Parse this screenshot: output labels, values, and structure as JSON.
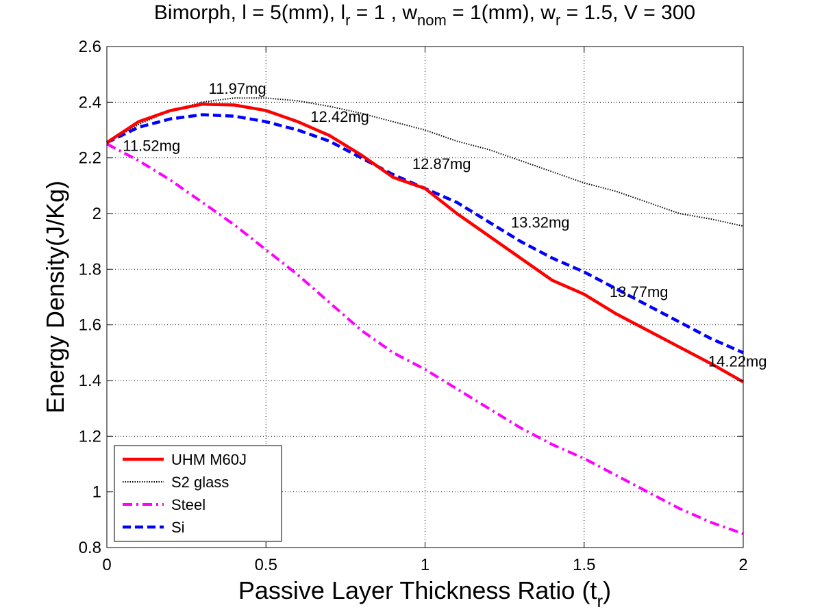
{
  "chart_data": {
    "type": "line",
    "title": {
      "parts": [
        {
          "text": "Bimorph, l = 5(mm), l",
          "sub": false
        },
        {
          "text": "r",
          "sub": true
        },
        {
          "text": " = 1 , w",
          "sub": false
        },
        {
          "text": "nom",
          "sub": true
        },
        {
          "text": " = 1(mm), w",
          "sub": false
        },
        {
          "text": "r",
          "sub": true
        },
        {
          "text": " = 1.5, V = 300",
          "sub": false
        }
      ]
    },
    "xlabel": {
      "main": "Passive Layer Thickness Ratio (t",
      "sub": "r",
      "close": ")"
    },
    "ylabel": "Energy Density(J/Kg)",
    "xlim": [
      0,
      2
    ],
    "ylim": [
      0.8,
      2.6
    ],
    "xticks": [
      0,
      0.5,
      1,
      1.5,
      2
    ],
    "xtick_labels": [
      "0",
      "0.5",
      "1",
      "1.5",
      "2"
    ],
    "yticks": [
      0.8,
      1,
      1.2,
      1.4,
      1.6,
      1.8,
      2,
      2.2,
      2.4,
      2.6
    ],
    "ytick_labels": [
      "0.8",
      "1",
      "1.2",
      "1.4",
      "1.6",
      "1.8",
      "2",
      "2.2",
      "2.4",
      "2.6"
    ],
    "grid": true,
    "legend_position": "bottom-left",
    "x": [
      0,
      0.1,
      0.2,
      0.3,
      0.4,
      0.5,
      0.6,
      0.7,
      0.8,
      0.9,
      1.0,
      1.1,
      1.2,
      1.3,
      1.4,
      1.5,
      1.6,
      1.7,
      1.8,
      1.9,
      2.0
    ],
    "series": [
      {
        "name": "UHM M60J",
        "color": "#ff0000",
        "style": "solid",
        "values": [
          2.255,
          2.33,
          2.37,
          2.393,
          2.39,
          2.37,
          2.33,
          2.28,
          2.21,
          2.13,
          2.09,
          2.0,
          1.92,
          1.84,
          1.76,
          1.71,
          1.64,
          1.58,
          1.52,
          1.46,
          1.395
        ]
      },
      {
        "name": "S2 glass",
        "color": "#000000",
        "style": "dotted",
        "values": [
          2.255,
          2.32,
          2.37,
          2.4,
          2.415,
          2.415,
          2.405,
          2.385,
          2.36,
          2.33,
          2.3,
          2.26,
          2.23,
          2.19,
          2.15,
          2.11,
          2.08,
          2.04,
          2.0,
          1.98,
          1.955
        ]
      },
      {
        "name": "Steel",
        "color": "#ff00ff",
        "style": "dashdot",
        "values": [
          2.25,
          2.19,
          2.12,
          2.04,
          1.96,
          1.87,
          1.78,
          1.68,
          1.58,
          1.5,
          1.44,
          1.37,
          1.3,
          1.23,
          1.17,
          1.12,
          1.06,
          1.0,
          0.94,
          0.89,
          0.85
        ]
      },
      {
        "name": "Si",
        "color": "#0000ff",
        "style": "dashed",
        "values": [
          2.255,
          2.31,
          2.34,
          2.355,
          2.35,
          2.33,
          2.3,
          2.26,
          2.2,
          2.14,
          2.09,
          2.04,
          1.97,
          1.9,
          1.84,
          1.79,
          1.73,
          1.67,
          1.61,
          1.55,
          1.5
        ]
      }
    ],
    "annotations": [
      {
        "text": "11.52mg",
        "x": 0.05,
        "y": 2.225
      },
      {
        "text": "11.97mg",
        "x": 0.32,
        "y": 2.43
      },
      {
        "text": "12.42mg",
        "x": 0.64,
        "y": 2.33
      },
      {
        "text": "12.87mg",
        "x": 0.96,
        "y": 2.16
      },
      {
        "text": "13.32mg",
        "x": 1.27,
        "y": 1.95
      },
      {
        "text": "13.77mg",
        "x": 1.58,
        "y": 1.7
      },
      {
        "text": "14.22mg",
        "x": 1.89,
        "y": 1.45
      }
    ]
  }
}
